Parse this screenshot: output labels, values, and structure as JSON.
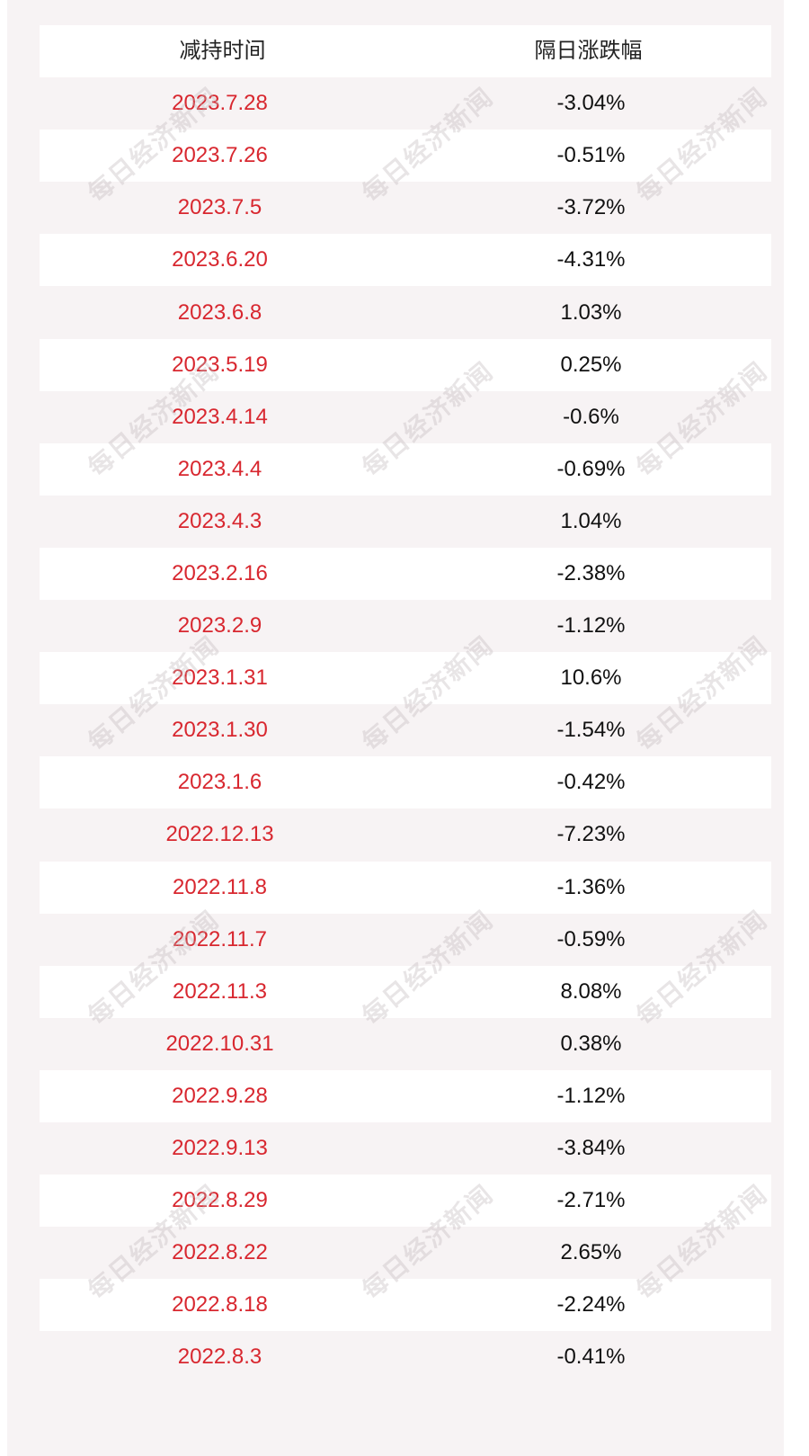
{
  "table": {
    "headers": {
      "date": "减持时间",
      "change": "隔日涨跌幅"
    },
    "rows": [
      {
        "date": "2023.7.28",
        "change": "-3.04%"
      },
      {
        "date": "2023.7.26",
        "change": "-0.51%"
      },
      {
        "date": "2023.7.5",
        "change": "-3.72%"
      },
      {
        "date": "2023.6.20",
        "change": "-4.31%"
      },
      {
        "date": "2023.6.8",
        "change": "1.03%"
      },
      {
        "date": "2023.5.19",
        "change": "0.25%"
      },
      {
        "date": "2023.4.14",
        "change": "-0.6%"
      },
      {
        "date": "2023.4.4",
        "change": "-0.69%"
      },
      {
        "date": "2023.4.3",
        "change": "1.04%"
      },
      {
        "date": "2023.2.16",
        "change": "-2.38%"
      },
      {
        "date": "2023.2.9",
        "change": "-1.12%"
      },
      {
        "date": "2023.1.31",
        "change": "10.6%"
      },
      {
        "date": "2023.1.30",
        "change": "-1.54%"
      },
      {
        "date": "2023.1.6",
        "change": "-0.42%"
      },
      {
        "date": "2022.12.13",
        "change": "-7.23%"
      },
      {
        "date": "2022.11.8",
        "change": "-1.36%"
      },
      {
        "date": "2022.11.7",
        "change": "-0.59%"
      },
      {
        "date": "2022.11.3",
        "change": "8.08%"
      },
      {
        "date": "2022.10.31",
        "change": "0.38%"
      },
      {
        "date": "2022.9.28",
        "change": "-1.12%"
      },
      {
        "date": "2022.9.13",
        "change": "-3.84%"
      },
      {
        "date": "2022.8.29",
        "change": "-2.71%"
      },
      {
        "date": "2022.8.22",
        "change": "2.65%"
      },
      {
        "date": "2022.8.18",
        "change": "-2.24%"
      },
      {
        "date": "2022.8.3",
        "change": "-0.41%"
      }
    ]
  },
  "watermark": {
    "text": "每日经济新闻"
  },
  "colors": {
    "date_text": "#d8272f",
    "value_text": "#111111",
    "panel_bg": "#f7f3f4",
    "row_bg": "#ffffff"
  }
}
